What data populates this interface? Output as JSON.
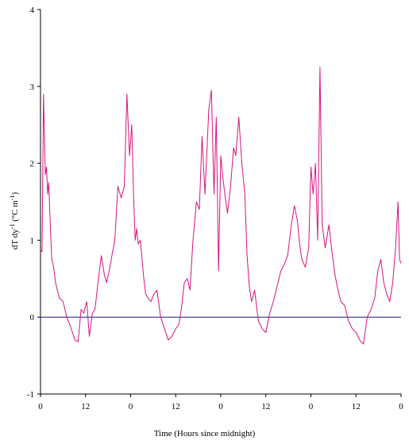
{
  "chart_data": {
    "type": "line",
    "title": "",
    "xlabel": "Time (Hours since midnight)",
    "ylabel": "dT dy-1 (°C m-1)",
    "ylabel_parts": {
      "main": "dT dy",
      "exp1": "-1",
      "mid": " (°C m",
      "exp2": "-1",
      "end": ")"
    },
    "xlim": [
      0,
      96
    ],
    "ylim": [
      -1,
      4
    ],
    "x_ticks": [
      0,
      12,
      24,
      36,
      48,
      60,
      72,
      84,
      96
    ],
    "x_tick_labels": [
      "0",
      "12",
      "0",
      "12",
      "0",
      "12",
      "0",
      "12",
      "0"
    ],
    "y_ticks": [
      -1,
      0,
      1,
      2,
      3,
      4
    ],
    "y_tick_labels": [
      "-1",
      "0",
      "1",
      "2",
      "3",
      "4"
    ],
    "reference_line_y": 0,
    "grid": false,
    "series": [
      {
        "color": "#d6147a",
        "x": [
          0.0,
          0.4,
          0.8,
          1.3,
          1.6,
          1.9,
          2.2,
          2.6,
          3.0,
          3.5,
          4.0,
          5.0,
          6.0,
          7.0,
          7.8,
          8.5,
          9.2,
          10.0,
          10.8,
          11.5,
          12.3,
          13.0,
          13.8,
          14.5,
          15.3,
          16.2,
          17.0,
          17.6,
          18.3,
          19.0,
          19.8,
          20.6,
          21.5,
          22.3,
          23.0,
          23.7,
          24.3,
          24.8,
          25.2,
          25.6,
          26.0,
          26.6,
          27.4,
          28.0,
          28.6,
          29.4,
          30.2,
          31.0,
          32.0,
          33.0,
          34.0,
          35.0,
          36.0,
          36.8,
          37.5,
          38.3,
          39.1,
          39.8,
          40.6,
          41.5,
          42.3,
          43.0,
          43.8,
          44.8,
          45.5,
          46.2,
          46.8,
          47.4,
          48.0,
          48.6,
          49.2,
          49.8,
          50.6,
          51.4,
          52.0,
          52.8,
          53.6,
          54.4,
          55.0,
          55.6,
          56.2,
          57.0,
          58.0,
          59.0,
          60.0,
          61.0,
          62.0,
          63.0,
          64.0,
          65.0,
          65.8,
          66.8,
          67.6,
          68.4,
          69.0,
          69.6,
          70.5,
          71.4,
          72.0,
          72.6,
          73.2,
          73.8,
          74.4,
          75.0,
          75.8,
          76.8,
          77.6,
          78.4,
          79.2,
          80.0,
          81.0,
          82.0,
          83.0,
          84.0,
          85.0,
          86.0,
          87.0,
          88.0,
          89.0,
          89.8,
          90.6,
          91.4,
          92.2,
          93.0,
          93.8,
          94.6,
          95.2,
          95.6,
          96.0
        ],
        "y": [
          0.88,
          0.85,
          2.9,
          1.85,
          1.95,
          1.6,
          1.75,
          1.2,
          0.75,
          0.65,
          0.45,
          0.25,
          0.2,
          0.0,
          -0.1,
          -0.2,
          -0.3,
          -0.32,
          0.1,
          0.05,
          0.2,
          -0.25,
          0.05,
          0.1,
          0.45,
          0.8,
          0.55,
          0.45,
          0.6,
          0.8,
          1.0,
          1.7,
          1.55,
          1.7,
          2.9,
          2.1,
          2.5,
          1.55,
          1.0,
          1.15,
          0.95,
          1.0,
          0.55,
          0.3,
          0.25,
          0.2,
          0.3,
          0.35,
          0.0,
          -0.15,
          -0.3,
          -0.25,
          -0.15,
          -0.1,
          0.1,
          0.45,
          0.5,
          0.35,
          1.0,
          1.5,
          1.4,
          2.35,
          1.6,
          2.7,
          2.95,
          1.6,
          2.6,
          0.6,
          2.1,
          1.8,
          1.55,
          1.35,
          1.7,
          2.2,
          2.1,
          2.6,
          2.0,
          1.6,
          0.8,
          0.4,
          0.2,
          0.35,
          -0.05,
          -0.15,
          -0.2,
          0.05,
          0.2,
          0.4,
          0.6,
          0.7,
          0.8,
          1.2,
          1.45,
          1.25,
          0.95,
          0.75,
          0.65,
          0.9,
          1.95,
          1.6,
          2.0,
          1.0,
          3.25,
          1.2,
          0.9,
          1.2,
          0.85,
          0.55,
          0.35,
          0.2,
          0.15,
          -0.05,
          -0.15,
          -0.2,
          -0.3,
          -0.35,
          0.0,
          0.1,
          0.25,
          0.6,
          0.75,
          0.45,
          0.3,
          0.2,
          0.45,
          0.95,
          1.5,
          0.75,
          0.7
        ]
      }
    ]
  }
}
